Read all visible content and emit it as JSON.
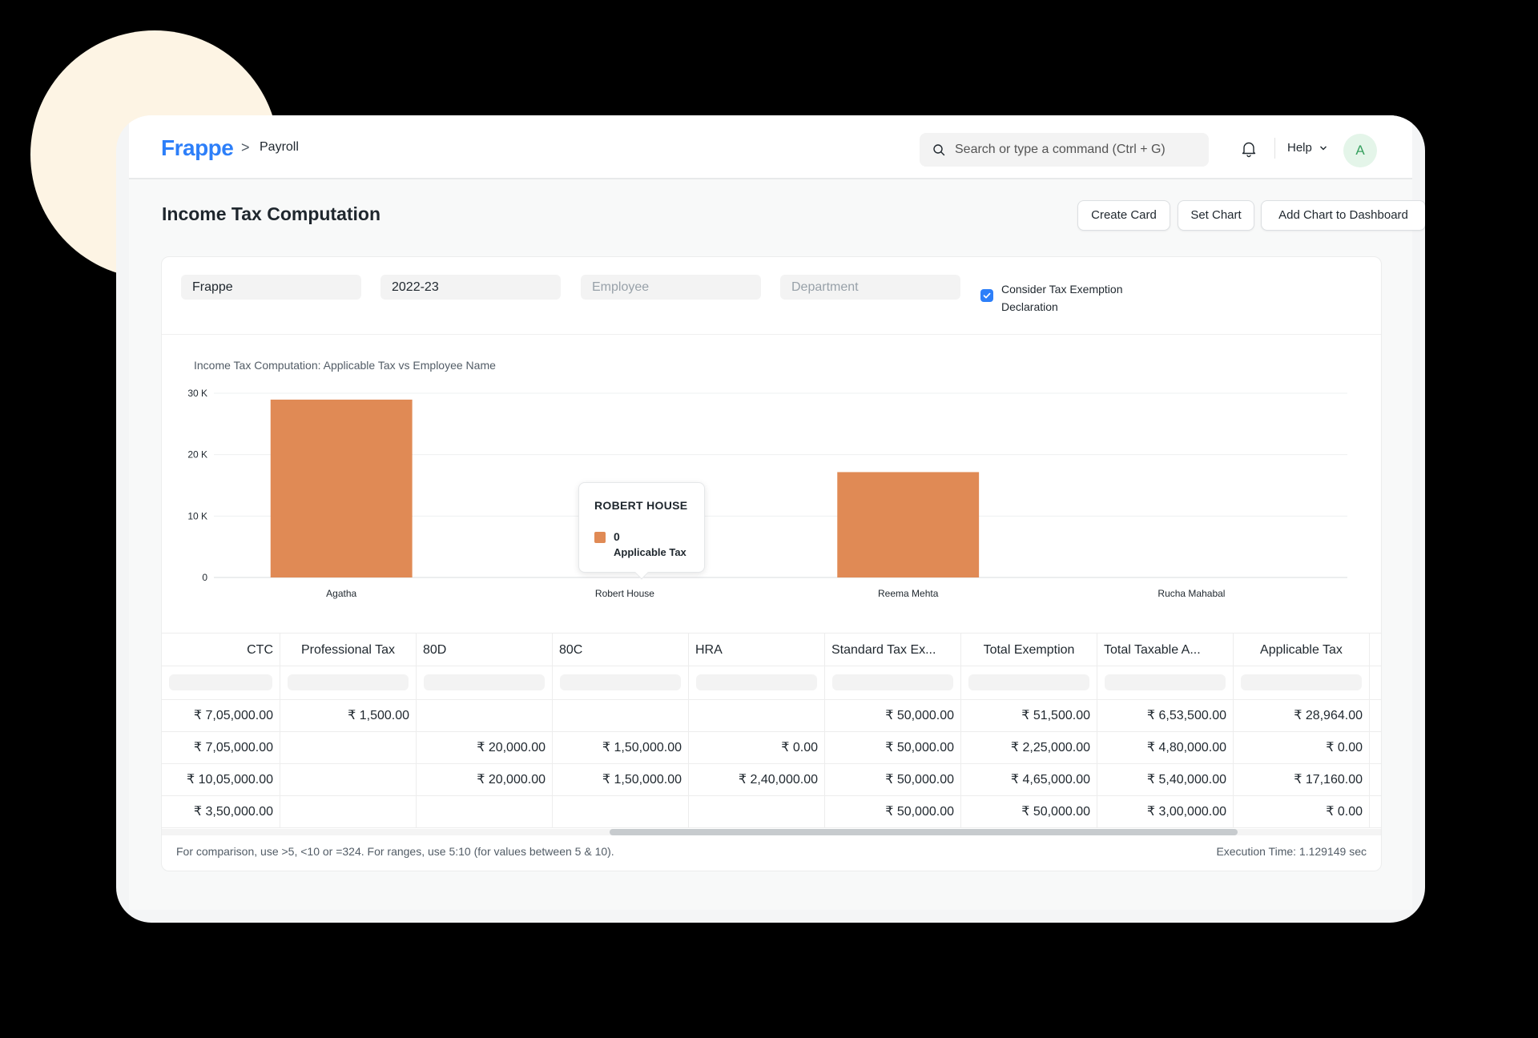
{
  "navbar": {
    "logo": "Frappe",
    "breadcrumb_separator": ">",
    "breadcrumb": "Payroll",
    "search_placeholder": "Search or type a command (Ctrl + G)",
    "help_label": "Help",
    "avatar_initial": "A"
  },
  "page": {
    "title": "Income Tax Computation",
    "buttons": {
      "create_card": "Create Card",
      "set_chart": "Set Chart",
      "add_to_dashboard": "Add Chart to Dashboard",
      "more": "···"
    }
  },
  "filters": {
    "company": "Frappe",
    "payroll_period": "2022-23",
    "employee_placeholder": "Employee",
    "department_placeholder": "Department",
    "consider_exemption_line1": "Consider Tax Exemption",
    "consider_exemption_line2": "Declaration",
    "consider_exemption_checked": true
  },
  "chart_data": {
    "type": "bar",
    "title": "Income Tax Computation: Applicable Tax vs Employee Name",
    "categories": [
      "Agatha",
      "Robert House",
      "Reema Mehta",
      "Rucha Mahabal"
    ],
    "series": [
      {
        "name": "Applicable Tax",
        "values": [
          28964,
          0,
          17160,
          0
        ]
      }
    ],
    "ylim": [
      0,
      30000
    ],
    "yticks": [
      0,
      10000,
      20000,
      30000
    ],
    "ytick_labels": [
      "0",
      "10 K",
      "20 K",
      "30 K"
    ],
    "bar_color": "#e08a55",
    "grid": true,
    "tooltip": {
      "title": "ROBERT HOUSE",
      "value": "0",
      "label": "Applicable Tax"
    }
  },
  "table": {
    "columns": [
      "CTC",
      "Professional Tax",
      "80D",
      "80C",
      "HRA",
      "Standard Tax Ex...",
      "Total Exemption",
      "Total Taxable A...",
      "Applicable Tax"
    ],
    "rows": [
      [
        "₹ 7,05,000.00",
        "₹ 1,500.00",
        "",
        "",
        "",
        "₹ 50,000.00",
        "₹ 51,500.00",
        "₹ 6,53,500.00",
        "₹ 28,964.00"
      ],
      [
        "₹ 7,05,000.00",
        "",
        "₹ 20,000.00",
        "₹ 1,50,000.00",
        "₹ 0.00",
        "₹ 50,000.00",
        "₹ 2,25,000.00",
        "₹ 4,80,000.00",
        "₹ 0.00"
      ],
      [
        "₹ 10,05,000.00",
        "",
        "₹ 20,000.00",
        "₹ 1,50,000.00",
        "₹ 2,40,000.00",
        "₹ 50,000.00",
        "₹ 4,65,000.00",
        "₹ 5,40,000.00",
        "₹ 17,160.00"
      ],
      [
        "₹ 3,50,000.00",
        "",
        "",
        "",
        "",
        "₹ 50,000.00",
        "₹ 50,000.00",
        "₹ 3,00,000.00",
        "₹ 0.00"
      ]
    ]
  },
  "footer": {
    "note": "For comparison, use >5, <10 or =324. For ranges, use 5:10 (for values between 5 & 10).",
    "execution_time": "Execution Time: 1.129149 sec"
  }
}
